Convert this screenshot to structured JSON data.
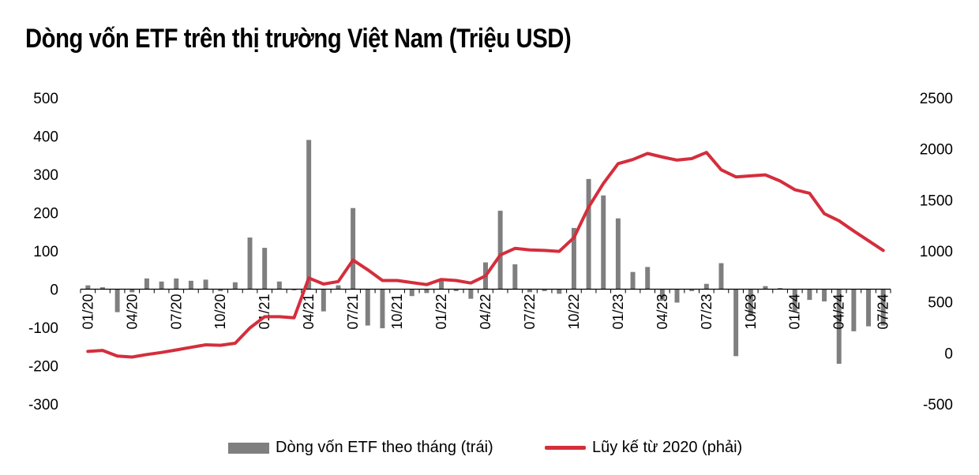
{
  "title": "Dòng vốn ETF trên thị trường Việt Nam (Triệu USD)",
  "colors": {
    "bars": "#7f7f7f",
    "line": "#d42e3c",
    "zero_axis": "#000000"
  },
  "chart_data": {
    "type": "bar+line",
    "title": "Dòng vốn ETF trên thị trường Việt Nam (Triệu USD)",
    "grid": false,
    "legend_position": "bottom",
    "left_axis": {
      "min": -300,
      "max": 500,
      "ticks": [
        "500",
        "400",
        "300",
        "200",
        "100",
        "0",
        "-100",
        "-200",
        "-300"
      ]
    },
    "right_axis": {
      "min": -500,
      "max": 2500,
      "ticks": [
        "2500",
        "2000",
        "1500",
        "1000",
        "500",
        "0",
        "-500"
      ]
    },
    "x_tick_labels": [
      "01/20",
      "04/20",
      "07/20",
      "10/20",
      "01/21",
      "04/21",
      "07/21",
      "10/21",
      "01/22",
      "04/22",
      "07/22",
      "10/22",
      "01/23",
      "04/23",
      "07/23",
      "10/23",
      "01/24",
      "04/24",
      "07/24"
    ],
    "categories": [
      "01/20",
      "02/20",
      "03/20",
      "04/20",
      "05/20",
      "06/20",
      "07/20",
      "08/20",
      "09/20",
      "10/20",
      "11/20",
      "12/20",
      "01/21",
      "02/21",
      "03/21",
      "04/21",
      "05/21",
      "06/21",
      "07/21",
      "08/21",
      "09/21",
      "10/21",
      "11/21",
      "12/21",
      "01/22",
      "02/22",
      "03/22",
      "04/22",
      "05/22",
      "06/22",
      "07/22",
      "08/22",
      "09/22",
      "10/22",
      "11/22",
      "12/22",
      "01/23",
      "02/23",
      "03/23",
      "04/23",
      "05/23",
      "06/23",
      "07/23",
      "08/23",
      "09/23",
      "10/23",
      "11/23",
      "12/23",
      "01/24",
      "02/24",
      "03/24",
      "04/24",
      "05/24",
      "06/24",
      "07/24"
    ],
    "series": [
      {
        "name": "Dòng vốn ETF theo tháng (trái)",
        "type": "bar",
        "axis": "left",
        "values": [
          10,
          5,
          -60,
          -8,
          28,
          20,
          28,
          22,
          25,
          -5,
          18,
          135,
          108,
          20,
          -3,
          390,
          -58,
          10,
          212,
          -95,
          -102,
          0,
          -18,
          -10,
          25,
          -5,
          -25,
          70,
          205,
          65,
          -8,
          -5,
          -12,
          160,
          288,
          245,
          185,
          45,
          58,
          -30,
          -35,
          -5,
          14,
          68,
          -175,
          -70,
          8,
          3,
          -58,
          -28,
          -32,
          -195,
          -110,
          -97,
          -95
        ]
      },
      {
        "name": "Lũy kế từ 2020 (phải)",
        "type": "line",
        "axis": "right",
        "values": [
          15,
          25,
          -30,
          -40,
          -15,
          5,
          30,
          55,
          80,
          75,
          95,
          245,
          355,
          355,
          345,
          735,
          675,
          700,
          910,
          815,
          710,
          710,
          690,
          670,
          720,
          710,
          685,
          755,
          960,
          1025,
          1010,
          1005,
          995,
          1130,
          1430,
          1660,
          1855,
          1895,
          1955,
          1920,
          1890,
          1905,
          1965,
          1795,
          1725,
          1735,
          1745,
          1685,
          1600,
          1565,
          1365,
          1295,
          1195,
          1100,
          1005
        ]
      }
    ]
  }
}
